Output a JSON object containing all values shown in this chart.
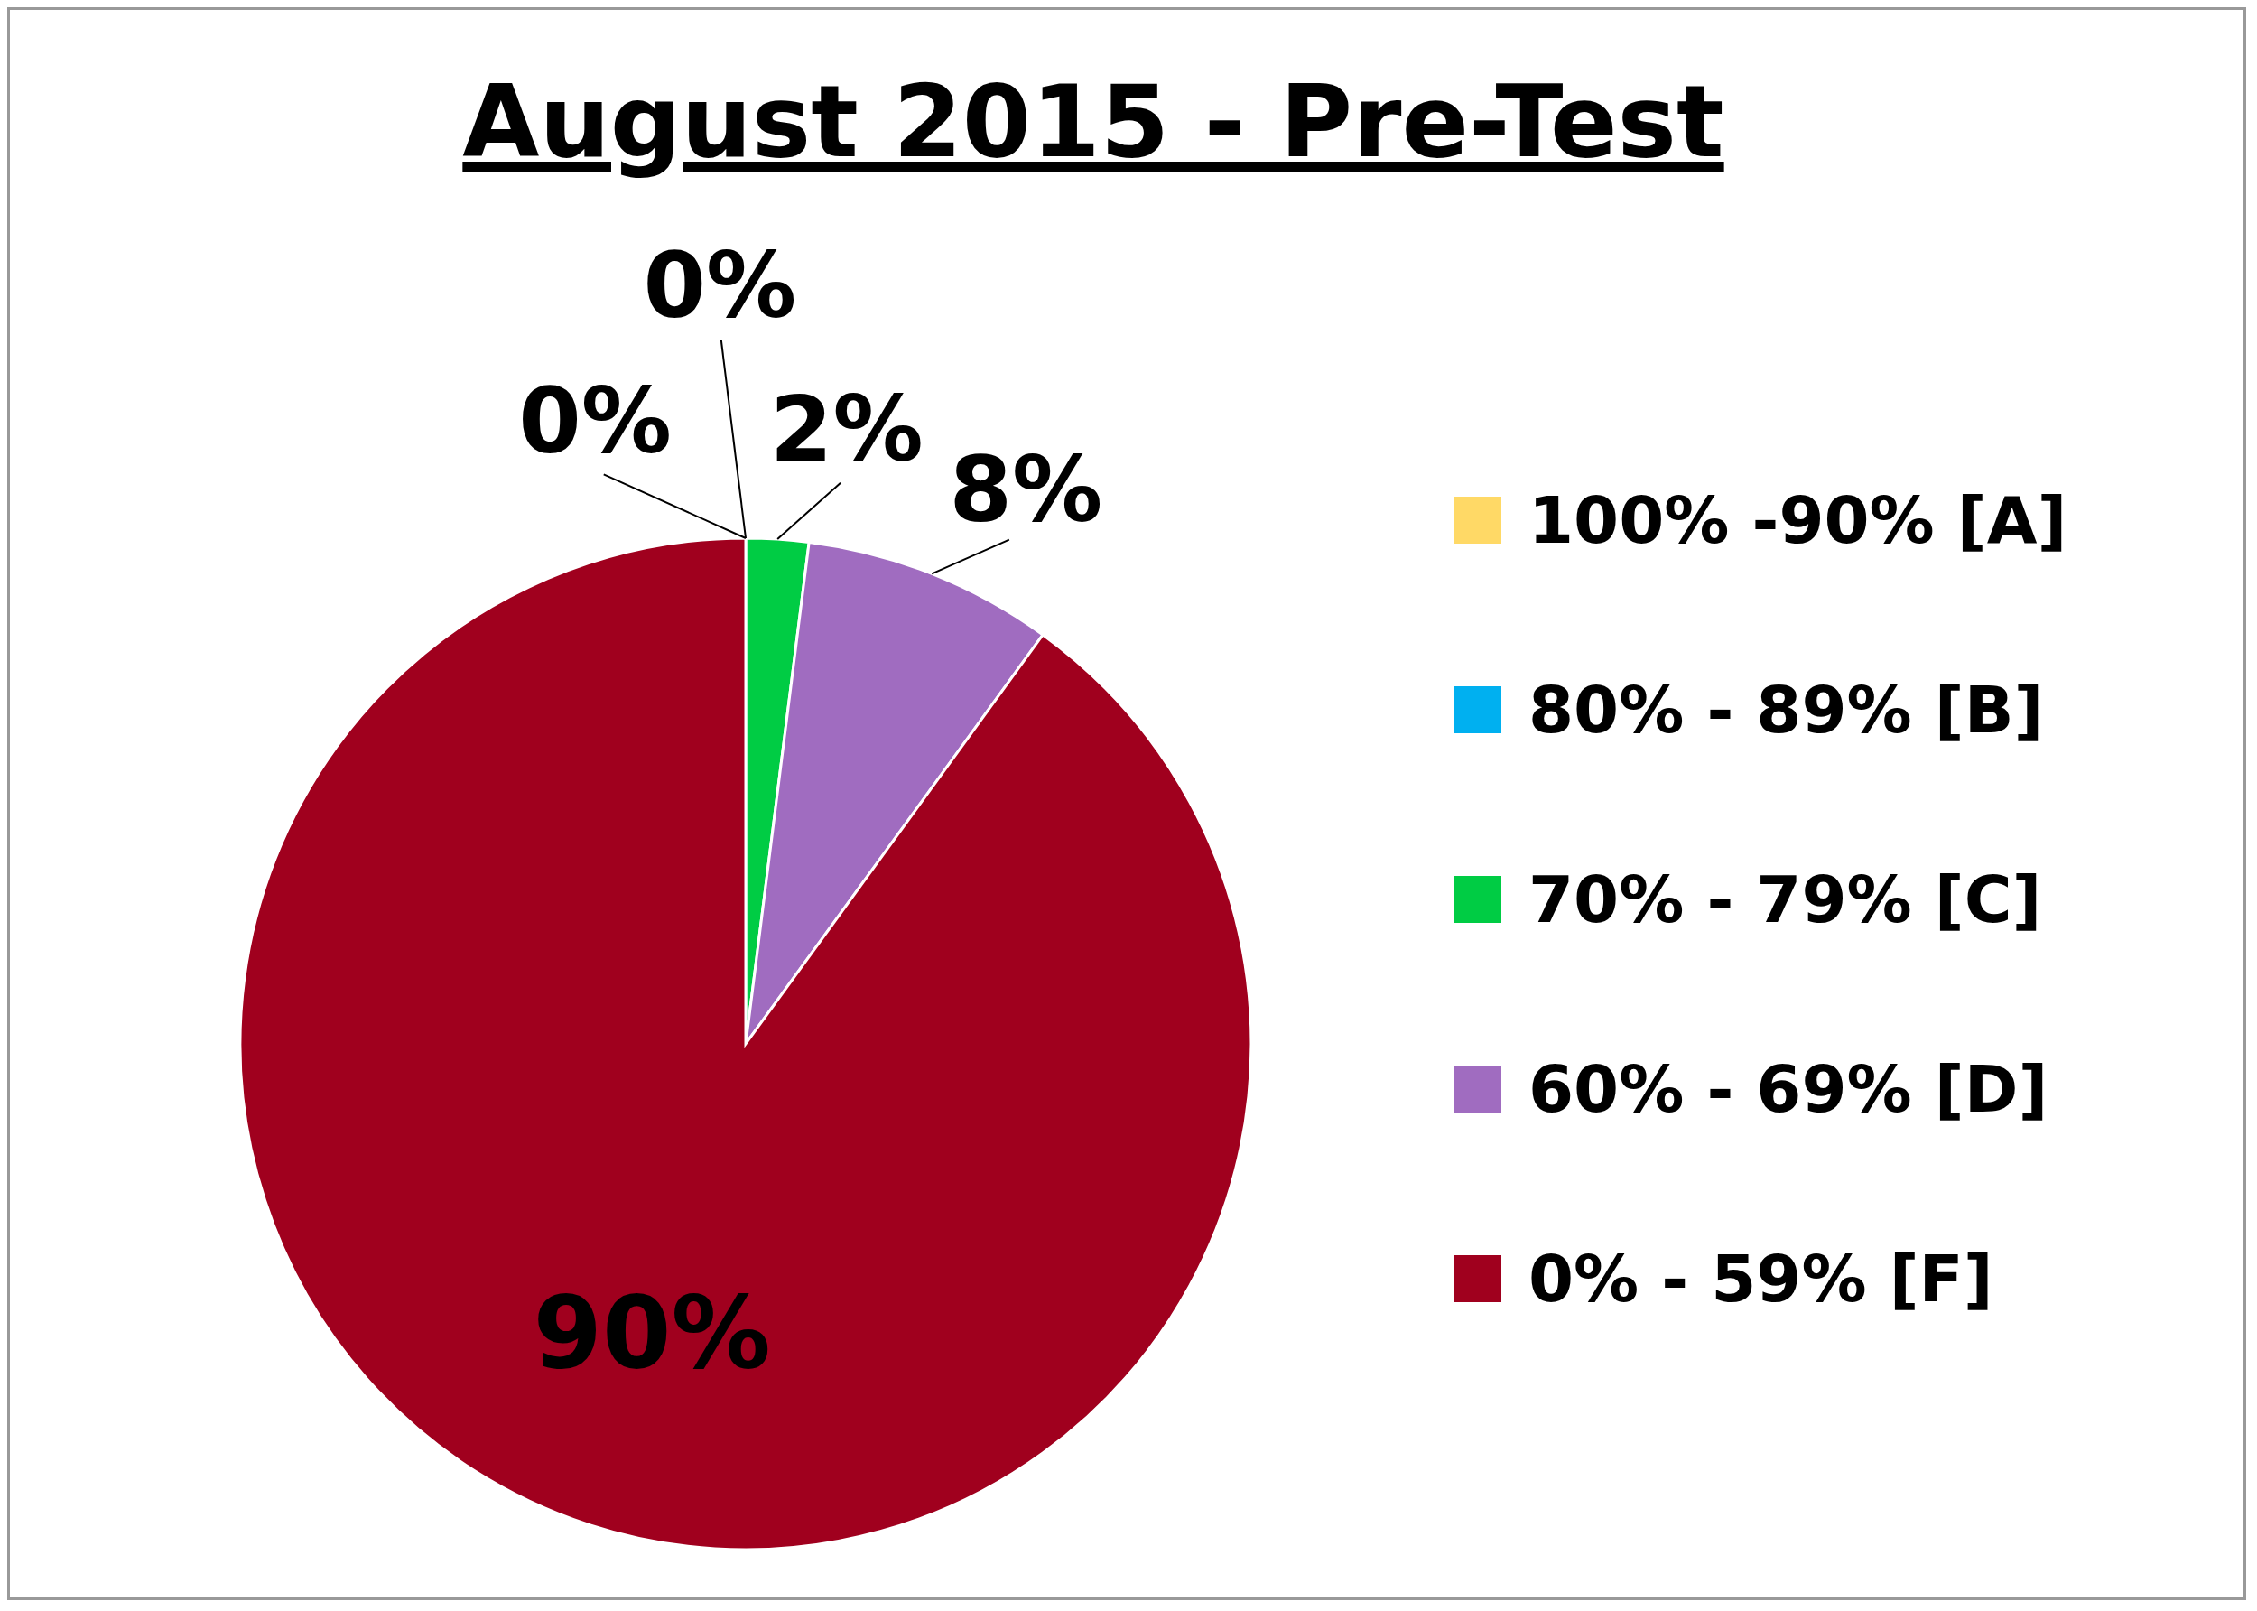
{
  "chart_data": {
    "type": "pie",
    "title": "August 2015 - Pre-Test",
    "categories": [
      "100% -90% [A]",
      "80% - 89% [B]",
      "70% - 79% [C]",
      "60% - 69% [D]",
      "0% - 59% [F]"
    ],
    "values": [
      0,
      0,
      2,
      8,
      90
    ],
    "value_labels": [
      "0%",
      "0%",
      "2%",
      "8%",
      "90%"
    ],
    "colors": [
      "#ffd966",
      "#00b0f0",
      "#00cc44",
      "#a06cc0",
      "#a0001e"
    ],
    "legend": "right"
  }
}
